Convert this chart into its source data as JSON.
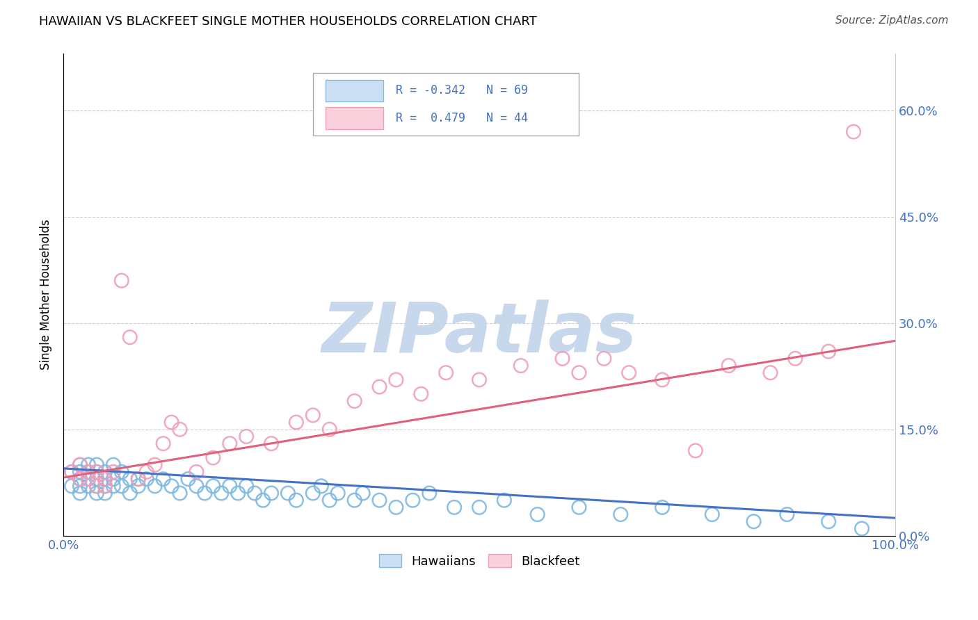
{
  "title": "HAWAIIAN VS BLACKFEET SINGLE MOTHER HOUSEHOLDS CORRELATION CHART",
  "source": "Source: ZipAtlas.com",
  "ylabel": "Single Mother Households",
  "ytick_labels": [
    "0.0%",
    "15.0%",
    "30.0%",
    "45.0%",
    "60.0%"
  ],
  "ytick_values": [
    0.0,
    0.15,
    0.3,
    0.45,
    0.6
  ],
  "xlim": [
    0.0,
    1.0
  ],
  "ylim": [
    0.0,
    0.68
  ],
  "hawaiian_color": "#7eb8e0",
  "blackfeet_color": "#f0a0b8",
  "trend_hawaiian_color": "#4472c4",
  "trend_blackfeet_color": "#e06080",
  "watermark_color": "#c8d8ec",
  "legend_box_color": "#aaaaaa",
  "legend_blue_fill": "#cce0f5",
  "legend_blue_edge": "#88b8e0",
  "legend_pink_fill": "#fad0dc",
  "legend_pink_edge": "#f0a0b8",
  "text_blue": "#4472c4",
  "grid_color": "#cccccc",
  "hawaiians_x": [
    0.01,
    0.01,
    0.02,
    0.02,
    0.02,
    0.02,
    0.02,
    0.03,
    0.03,
    0.03,
    0.03,
    0.04,
    0.04,
    0.04,
    0.04,
    0.04,
    0.05,
    0.05,
    0.05,
    0.05,
    0.06,
    0.06,
    0.06,
    0.07,
    0.07,
    0.08,
    0.08,
    0.09,
    0.09,
    0.1,
    0.11,
    0.12,
    0.13,
    0.14,
    0.15,
    0.16,
    0.17,
    0.18,
    0.19,
    0.2,
    0.21,
    0.22,
    0.23,
    0.24,
    0.25,
    0.27,
    0.28,
    0.3,
    0.31,
    0.32,
    0.33,
    0.35,
    0.36,
    0.38,
    0.4,
    0.42,
    0.44,
    0.47,
    0.5,
    0.53,
    0.57,
    0.62,
    0.67,
    0.72,
    0.78,
    0.83,
    0.87,
    0.92,
    0.96
  ],
  "hawaiians_y": [
    0.09,
    0.07,
    0.1,
    0.09,
    0.08,
    0.07,
    0.06,
    0.1,
    0.09,
    0.08,
    0.07,
    0.1,
    0.09,
    0.08,
    0.07,
    0.06,
    0.09,
    0.08,
    0.07,
    0.06,
    0.1,
    0.08,
    0.07,
    0.09,
    0.07,
    0.08,
    0.06,
    0.08,
    0.07,
    0.08,
    0.07,
    0.08,
    0.07,
    0.06,
    0.08,
    0.07,
    0.06,
    0.07,
    0.06,
    0.07,
    0.06,
    0.07,
    0.06,
    0.05,
    0.06,
    0.06,
    0.05,
    0.06,
    0.07,
    0.05,
    0.06,
    0.05,
    0.06,
    0.05,
    0.04,
    0.05,
    0.06,
    0.04,
    0.04,
    0.05,
    0.03,
    0.04,
    0.03,
    0.04,
    0.03,
    0.02,
    0.03,
    0.02,
    0.01
  ],
  "blackfeet_x": [
    0.01,
    0.02,
    0.02,
    0.03,
    0.03,
    0.04,
    0.04,
    0.05,
    0.05,
    0.06,
    0.07,
    0.08,
    0.09,
    0.1,
    0.11,
    0.12,
    0.13,
    0.14,
    0.16,
    0.18,
    0.2,
    0.22,
    0.25,
    0.28,
    0.3,
    0.32,
    0.35,
    0.38,
    0.4,
    0.43,
    0.46,
    0.5,
    0.55,
    0.6,
    0.62,
    0.65,
    0.68,
    0.72,
    0.76,
    0.8,
    0.85,
    0.88,
    0.92,
    0.95
  ],
  "blackfeet_y": [
    0.09,
    0.08,
    0.1,
    0.09,
    0.08,
    0.09,
    0.07,
    0.08,
    0.07,
    0.09,
    0.36,
    0.28,
    0.08,
    0.09,
    0.1,
    0.13,
    0.16,
    0.15,
    0.09,
    0.11,
    0.13,
    0.14,
    0.13,
    0.16,
    0.17,
    0.15,
    0.19,
    0.21,
    0.22,
    0.2,
    0.23,
    0.22,
    0.24,
    0.25,
    0.23,
    0.25,
    0.23,
    0.22,
    0.12,
    0.24,
    0.23,
    0.25,
    0.26,
    0.57
  ],
  "h_trend_x": [
    0.0,
    1.0
  ],
  "h_trend_y": [
    0.095,
    0.025
  ],
  "b_trend_x": [
    0.0,
    1.0
  ],
  "b_trend_y": [
    0.082,
    0.275
  ]
}
